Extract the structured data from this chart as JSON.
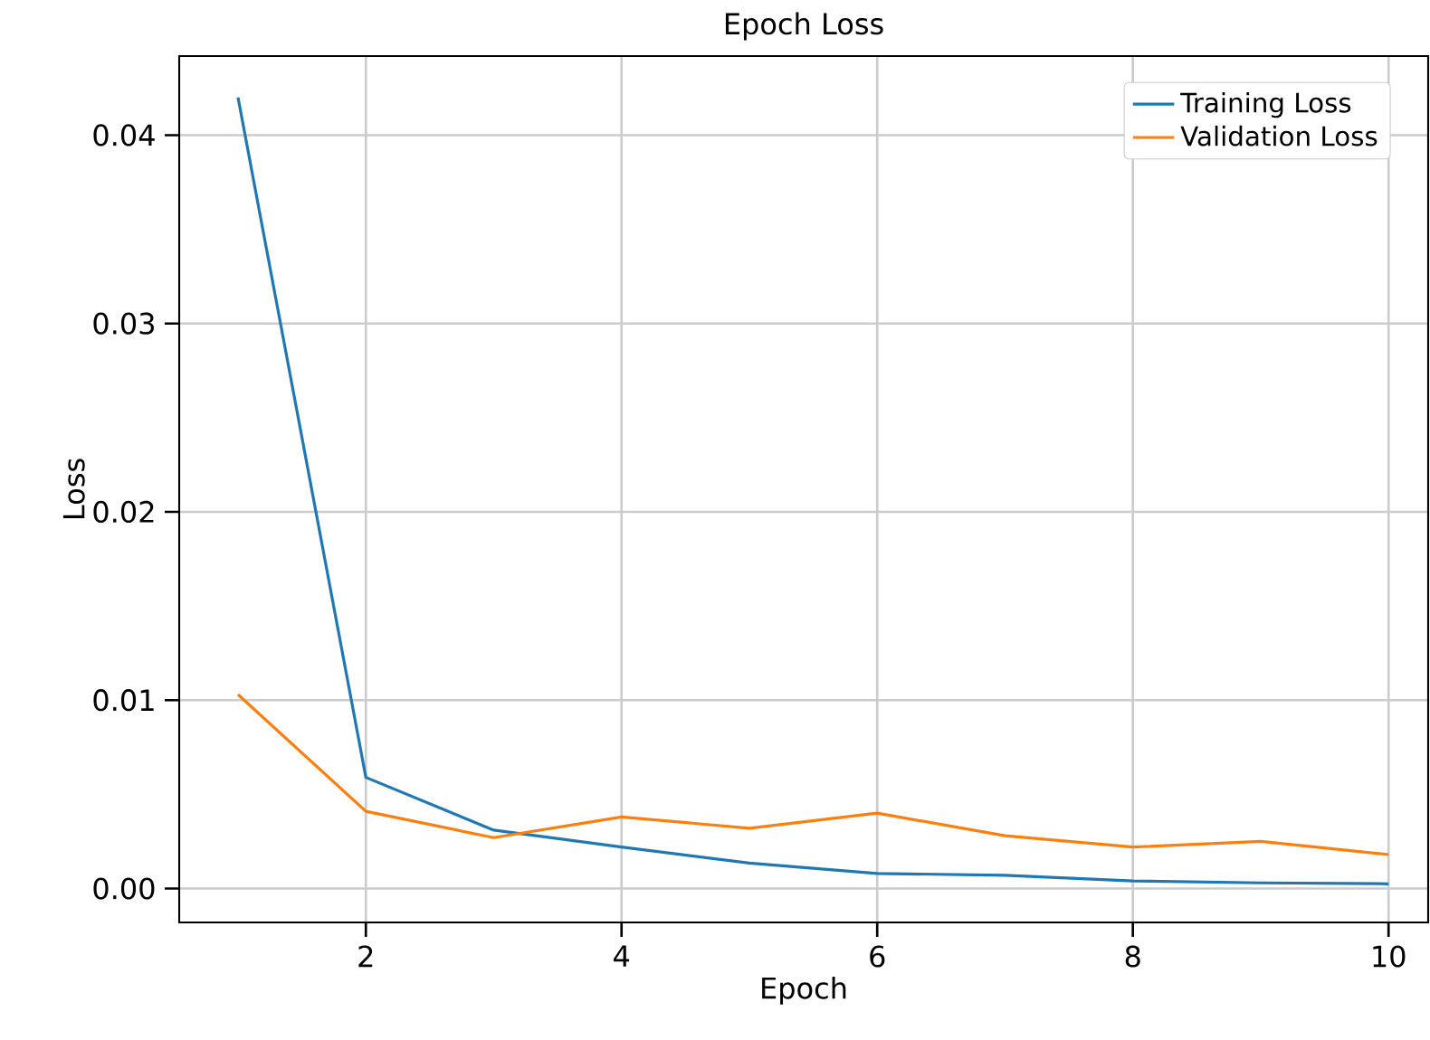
{
  "chart_data": {
    "type": "line",
    "title": "Epoch Loss",
    "xlabel": "Epoch",
    "ylabel": "Loss",
    "x": [
      1,
      2,
      3,
      4,
      5,
      6,
      7,
      8,
      9,
      10
    ],
    "series": [
      {
        "name": "Training Loss",
        "color": "#1f77b4",
        "values": [
          0.042,
          0.0059,
          0.0031,
          0.0022,
          0.00135,
          0.0008,
          0.0007,
          0.0004,
          0.0003,
          0.00025
        ]
      },
      {
        "name": "Validation Loss",
        "color": "#ff7f0e",
        "values": [
          0.0103,
          0.0041,
          0.0027,
          0.0038,
          0.0032,
          0.004,
          0.0028,
          0.0022,
          0.0025,
          0.0018
        ]
      }
    ],
    "xlim": [
      0.54,
      10.31
    ],
    "ylim": [
      -0.0018,
      0.0442
    ],
    "xticks": [
      2,
      4,
      6,
      8,
      10
    ],
    "yticks": [
      {
        "value": 0,
        "label": "0.00"
      },
      {
        "value": 0.01,
        "label": "0.01"
      },
      {
        "value": 0.02,
        "label": "0.02"
      },
      {
        "value": 0.03,
        "label": "0.03"
      },
      {
        "value": 0.04,
        "label": "0.04"
      }
    ],
    "grid": true,
    "legend": "top right",
    "marker": "none",
    "line_style": "solid"
  }
}
